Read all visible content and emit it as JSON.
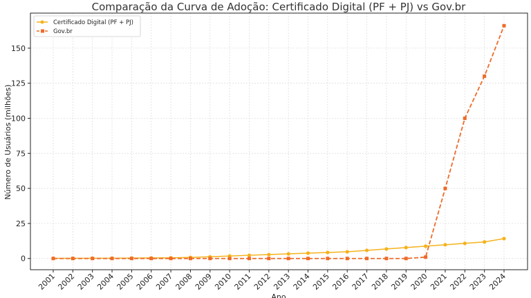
{
  "chart_data": {
    "type": "line",
    "title": "Comparação da Curva de Adoção: Certificado Digital (PF + PJ) vs Gov.br",
    "xlabel": "Ano",
    "ylabel": "Número de Usuários (milhões)",
    "categories": [
      "2001",
      "2002",
      "2003",
      "2004",
      "2005",
      "2006",
      "2007",
      "2008",
      "2009",
      "2010",
      "2011",
      "2012",
      "2013",
      "2014",
      "2015",
      "2016",
      "2017",
      "2018",
      "2019",
      "2020",
      "2021",
      "2022",
      "2023",
      "2024"
    ],
    "yticks": [
      0,
      25,
      50,
      75,
      100,
      125,
      150
    ],
    "ylim": [
      -8,
      175
    ],
    "grid": true,
    "legend_position": "top-left",
    "series": [
      {
        "name": "Certificado Digital (PF + PJ)",
        "color": "#f5b21b",
        "marker": "circle",
        "line_style": "solid",
        "values": [
          0.1,
          0.1,
          0.2,
          0.2,
          0.3,
          0.4,
          0.5,
          0.8,
          1.2,
          1.8,
          2.3,
          2.8,
          3.3,
          3.8,
          4.3,
          4.8,
          5.8,
          6.8,
          7.8,
          8.8,
          9.8,
          10.8,
          11.8,
          14.2
        ]
      },
      {
        "name": "Gov.br",
        "color": "#ee6b29",
        "marker": "square",
        "line_style": "dashed",
        "values": [
          0,
          0,
          0,
          0,
          0,
          0,
          0,
          0,
          0,
          0,
          0,
          0,
          0,
          0,
          0,
          0,
          0,
          0,
          0,
          1,
          50,
          100,
          130,
          166
        ]
      }
    ]
  }
}
